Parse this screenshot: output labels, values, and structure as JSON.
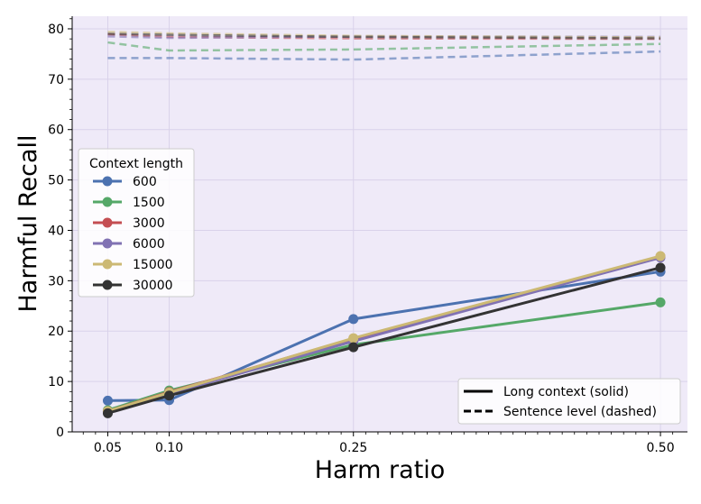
{
  "chart_data": {
    "type": "line",
    "title": "",
    "xlabel": "Harm ratio",
    "ylabel": "Harmful Recall",
    "x": [
      0.05,
      0.1,
      0.25,
      0.5
    ],
    "x_tick_labels": [
      "0.05",
      "0.10",
      "0.25",
      "0.50"
    ],
    "xlim": [
      0.021,
      0.522
    ],
    "ylim": [
      0,
      82.5
    ],
    "y_ticks": [
      0,
      10,
      20,
      30,
      40,
      50,
      60,
      70,
      80
    ],
    "y_tick_labels": [
      "0",
      "10",
      "20",
      "30",
      "40",
      "50",
      "60",
      "70",
      "80"
    ],
    "grid": true,
    "background": "#efeaf8",
    "legend_title": "Context length",
    "legend_position": "center-left",
    "style_legend_position": "bottom-right",
    "style_legend": [
      {
        "label": "Long context (solid)",
        "style": "solid"
      },
      {
        "label": "Sentence level (dashed)",
        "style": "dashed"
      }
    ],
    "series": [
      {
        "name": "600",
        "color": "#4c72b0",
        "long_context": [
          6.2,
          6.3,
          22.4,
          31.8
        ],
        "sentence_level": [
          74.2,
          74.2,
          73.9,
          75.5
        ]
      },
      {
        "name": "1500",
        "color": "#55a868",
        "long_context": [
          4.3,
          8.2,
          17.3,
          25.7
        ],
        "sentence_level": [
          77.3,
          75.7,
          75.9,
          77.0
        ]
      },
      {
        "name": "3000",
        "color": "#c44e52",
        "long_context": [
          4.1,
          7.9,
          18.5,
          34.8
        ],
        "sentence_level": [
          78.9,
          78.4,
          78.1,
          78.0
        ]
      },
      {
        "name": "6000",
        "color": "#8172b3",
        "long_context": [
          4.0,
          7.6,
          18.0,
          34.6
        ],
        "sentence_level": [
          78.5,
          78.2,
          78.5,
          78.4
        ]
      },
      {
        "name": "15000",
        "color": "#ccb974",
        "long_context": [
          4.1,
          7.8,
          18.6,
          34.9
        ],
        "sentence_level": [
          79.4,
          79.1,
          78.6,
          78.3
        ]
      },
      {
        "name": "30000",
        "color": "#333333",
        "long_context": [
          3.7,
          7.2,
          16.8,
          32.6
        ],
        "sentence_level": [
          79.0,
          78.8,
          78.4,
          78.1
        ]
      }
    ]
  }
}
